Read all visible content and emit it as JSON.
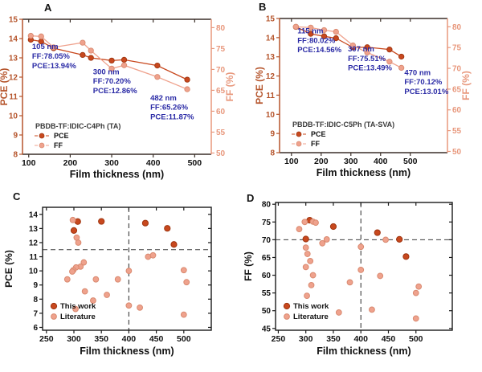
{
  "colors": {
    "this_work": "#c8481e",
    "this_work_edge": "#9e3510",
    "literature": "#efa28d",
    "literature_edge": "#d98a70",
    "pce": "#c8481e",
    "pce_edge": "#9e3510",
    "ff": "#efa28d",
    "ff_edge": "#d98a70",
    "annotation": "#2b2ba6",
    "axis_left": "#b5542b",
    "axis_right": "#e8987d",
    "frame": "#3a2f28",
    "scatter_frame": "#1a1a1a",
    "dashed": "#3c3c3c",
    "legend_title": "#3a3a3a",
    "tick_text": "#111111"
  },
  "chart_data": [
    {
      "id": "A",
      "label": "A",
      "type": "line",
      "xlabel": "Film thickness (nm)",
      "ylabel_left": "PCE (%)",
      "ylabel_right": "FF (%)",
      "xlim": [
        85,
        540
      ],
      "xticks": [
        100,
        200,
        300,
        400,
        500
      ],
      "ylim_left": [
        8,
        15
      ],
      "yticks_left": [
        8,
        9,
        10,
        11,
        12,
        13,
        14,
        15
      ],
      "ylim_right": [
        49.7,
        82
      ],
      "yticks_right": [
        50,
        55,
        60,
        65,
        70,
        75,
        80
      ],
      "legend_title": "PBDB-TF:IDIC-C4Ph (TA)",
      "series": [
        {
          "name": "PCE",
          "role": "pce",
          "axis": "left",
          "points": [
            [
              105,
              13.94
            ],
            [
              130,
              13.85
            ],
            [
              160,
              13.5
            ],
            [
              230,
              13.15
            ],
            [
              250,
              13.0
            ],
            [
              300,
              12.86
            ],
            [
              330,
              12.9
            ],
            [
              410,
              12.6
            ],
            [
              482,
              11.87
            ]
          ]
        },
        {
          "name": "FF",
          "role": "ff",
          "axis": "right",
          "points": [
            [
              105,
              78.05
            ],
            [
              130,
              77.9
            ],
            [
              160,
              75.3
            ],
            [
              230,
              76.4
            ],
            [
              250,
              74.5
            ],
            [
              300,
              70.2
            ],
            [
              330,
              71.0
            ],
            [
              410,
              68.2
            ],
            [
              482,
              65.26
            ]
          ]
        }
      ],
      "annotations": [
        {
          "x": 108,
          "y": 13.45,
          "lines": [
            "105 nm",
            "FF:78.05%",
            "PCE:13.94%"
          ]
        },
        {
          "x": 255,
          "y": 12.15,
          "lines": [
            "300 nm",
            "FF:70.20%",
            "PCE:12.86%"
          ]
        },
        {
          "x": 393,
          "y": 10.8,
          "lines": [
            "482 nm",
            "FF:65.26%",
            "PCE:11.87%"
          ]
        }
      ]
    },
    {
      "id": "B",
      "label": "B",
      "type": "line",
      "xlabel": "Film thickness (nm)",
      "ylabel_left": "PCE (%)",
      "ylabel_right": "FF (%)",
      "xlim": [
        60,
        625
      ],
      "xticks": [
        100,
        200,
        300,
        400,
        500
      ],
      "ylim_left": [
        8,
        15
      ],
      "yticks_left": [
        8,
        9,
        10,
        11,
        12,
        13,
        14,
        15
      ],
      "ylim_right": [
        49.7,
        82
      ],
      "yticks_right": [
        50,
        55,
        60,
        65,
        70,
        75,
        80
      ],
      "legend_title": "PBDB-TF:IDIC-C5Ph (TA-SVA)",
      "series": [
        {
          "name": "PCE",
          "role": "pce",
          "axis": "left",
          "points": [
            [
              115,
              14.56
            ],
            [
              165,
              14.2
            ],
            [
              210,
              14.07
            ],
            [
              250,
              13.97
            ],
            [
              307,
              13.49
            ],
            [
              355,
              13.5
            ],
            [
              430,
              13.38
            ],
            [
              470,
              13.01
            ]
          ]
        },
        {
          "name": "FF",
          "role": "ff",
          "axis": "right",
          "points": [
            [
              115,
              80.02
            ],
            [
              165,
              79.8
            ],
            [
              210,
              79.2
            ],
            [
              250,
              78.8
            ],
            [
              307,
              75.51
            ],
            [
              355,
              73.8
            ],
            [
              430,
              71.6
            ],
            [
              470,
              70.12
            ]
          ]
        }
      ],
      "annotations": [
        {
          "x": 120,
          "y": 14.22,
          "lines": [
            "115 nm",
            "FF:80.02%",
            "PCE:14.56%"
          ]
        },
        {
          "x": 290,
          "y": 13.28,
          "lines": [
            "307 nm",
            "FF:75.51%",
            "PCE:13.49%"
          ]
        },
        {
          "x": 480,
          "y": 12.05,
          "lines": [
            "470 nm",
            "FF:70.12%",
            "PCE:13.01%"
          ]
        }
      ]
    },
    {
      "id": "C",
      "label": "C",
      "type": "scatter",
      "xlabel": "Film thickness (nm)",
      "ylabel": "PCE (%)",
      "xlim": [
        243,
        550
      ],
      "xticks": [
        250,
        300,
        350,
        400,
        450,
        500
      ],
      "ylim": [
        5.8,
        14.5
      ],
      "yticks": [
        6,
        7,
        8,
        9,
        10,
        11,
        12,
        13,
        14
      ],
      "ref_x": 400,
      "ref_y": 11.5,
      "series": [
        {
          "name": "This work",
          "role": "this_work",
          "points": [
            [
              300,
              12.86
            ],
            [
              307,
              13.49
            ],
            [
              350,
              13.5
            ],
            [
              430,
              13.38
            ],
            [
              470,
              13.01
            ],
            [
              482,
              11.87
            ]
          ]
        },
        {
          "name": "Literature",
          "role": "literature",
          "points": [
            [
              298,
              13.6
            ],
            [
              305,
              12.35
            ],
            [
              308,
              12.0
            ],
            [
              318,
              10.6
            ],
            [
              312,
              10.3
            ],
            [
              304,
              10.25
            ],
            [
              299,
              10.05
            ],
            [
              297,
              9.95
            ],
            [
              288,
              9.4
            ],
            [
              340,
              9.4
            ],
            [
              380,
              9.4
            ],
            [
              320,
              8.55
            ],
            [
              360,
              8.3
            ],
            [
              335,
              7.9
            ],
            [
              303,
              7.3
            ],
            [
              400,
              10.0
            ],
            [
              400,
              7.55
            ],
            [
              420,
              7.4
            ],
            [
              435,
              11.0
            ],
            [
              444,
              11.1
            ],
            [
              500,
              10.05
            ],
            [
              505,
              9.2
            ],
            [
              500,
              6.9
            ]
          ]
        }
      ]
    },
    {
      "id": "D",
      "label": "D",
      "type": "scatter",
      "xlabel": "Film thickness (nm)",
      "ylabel": "FF (%)",
      "xlim": [
        245,
        566
      ],
      "xticks": [
        250,
        300,
        350,
        400,
        450,
        500
      ],
      "ylim": [
        44.5,
        80.5
      ],
      "yticks": [
        45,
        50,
        55,
        60,
        65,
        70,
        75,
        80
      ],
      "ref_x": 400,
      "ref_y": 70,
      "series": [
        {
          "name": "This work",
          "role": "this_work",
          "points": [
            [
              300,
              70.2
            ],
            [
              307,
              75.51
            ],
            [
              350,
              73.7
            ],
            [
              430,
              72.0
            ],
            [
              470,
              70.12
            ],
            [
              482,
              65.26
            ]
          ]
        },
        {
          "name": "Literature",
          "role": "literature",
          "points": [
            [
              288,
              73.0
            ],
            [
              298,
              75.0
            ],
            [
              313,
              75.1
            ],
            [
              318,
              74.8
            ],
            [
              300,
              67.8
            ],
            [
              303,
              66.0
            ],
            [
              308,
              64.0
            ],
            [
              300,
              62.3
            ],
            [
              313,
              60.0
            ],
            [
              310,
              57.2
            ],
            [
              302,
              54.2
            ],
            [
              330,
              69.0
            ],
            [
              338,
              70.1
            ],
            [
              360,
              49.5
            ],
            [
              380,
              58.0
            ],
            [
              400,
              68.0
            ],
            [
              400,
              61.5
            ],
            [
              420,
              50.3
            ],
            [
              435,
              59.8
            ],
            [
              445,
              70.0
            ],
            [
              505,
              56.8
            ],
            [
              500,
              55.0
            ],
            [
              500,
              47.8
            ]
          ]
        }
      ]
    }
  ]
}
